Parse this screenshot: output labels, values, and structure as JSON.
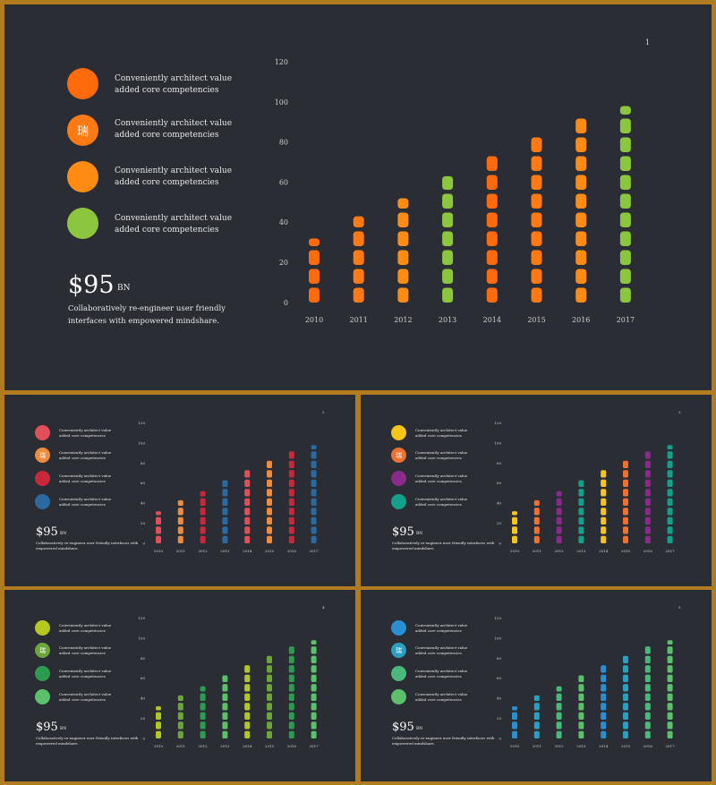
{
  "slides": [
    {
      "page": "1",
      "legend": [
        {
          "text": "Conveniently architect value added core competencies",
          "color": "#ff6a0d",
          "glyph": ""
        },
        {
          "text": "Conveniently architect value added core competencies",
          "color": "#ff7a12",
          "glyph": "瑞"
        },
        {
          "text": "Conveniently architect value added core competencies",
          "color": "#ff8c12",
          "glyph": ""
        },
        {
          "text": "Conveniently architect value added core competencies",
          "color": "#8cc63f",
          "glyph": ""
        }
      ],
      "big_value": "$95",
      "big_unit": "BN",
      "summary": "Collaboratively re-engineer user friendly interfaces with empowered mindshare.",
      "bar_colors": [
        "#ff6a0d",
        "#ff7a12",
        "#ff8c12",
        "#8cc63f",
        "#ff6a0d",
        "#ff7a12",
        "#ff8c12",
        "#8cc63f"
      ]
    },
    {
      "page": "2",
      "legend": [
        {
          "text": "Conveniently architect value added core competencies",
          "color": "#e04e5a",
          "glyph": ""
        },
        {
          "text": "Conveniently architect value added core competencies",
          "color": "#f08a3c",
          "glyph": "瑞"
        },
        {
          "text": "Conveniently architect value added core competencies",
          "color": "#c8283a",
          "glyph": ""
        },
        {
          "text": "Conveniently architect value added core competencies",
          "color": "#2a6aa0",
          "glyph": ""
        }
      ],
      "big_value": "$95",
      "big_unit": "BN",
      "summary": "Collaboratively re-engineer user friendly interfaces with empowered mindshare.",
      "bar_colors": [
        "#e04e5a",
        "#f08a3c",
        "#c8283a",
        "#2a6aa0",
        "#e04e5a",
        "#f08a3c",
        "#c8283a",
        "#2a6aa0"
      ]
    },
    {
      "page": "3",
      "legend": [
        {
          "text": "Conveniently architect value added core competencies",
          "color": "#f5c518",
          "glyph": ""
        },
        {
          "text": "Conveniently architect value added core competencies",
          "color": "#f07030",
          "glyph": "瑞"
        },
        {
          "text": "Conveniently architect value added core competencies",
          "color": "#8a2a8a",
          "glyph": ""
        },
        {
          "text": "Conveniently architect value added core competencies",
          "color": "#12a08a",
          "glyph": ""
        }
      ],
      "big_value": "$95",
      "big_unit": "BN",
      "summary": "Collaboratively re-engineer user friendly interfaces with empowered mindshare.",
      "bar_colors": [
        "#f5c518",
        "#f07030",
        "#8a2a8a",
        "#12a08a",
        "#f5c518",
        "#f07030",
        "#8a2a8a",
        "#12a08a"
      ]
    },
    {
      "page": "4",
      "legend": [
        {
          "text": "Conveniently architect value added core competencies",
          "color": "#b4c81e",
          "glyph": ""
        },
        {
          "text": "Conveniently architect value added core competencies",
          "color": "#6aa63a",
          "glyph": "瑞"
        },
        {
          "text": "Conveniently architect value added core competencies",
          "color": "#2e9a50",
          "glyph": ""
        },
        {
          "text": "Conveniently architect value added core competencies",
          "color": "#5cbf6a",
          "glyph": ""
        }
      ],
      "big_value": "$95",
      "big_unit": "BN",
      "summary": "Collaboratively re-engineer user friendly interfaces with empowered mindshare.",
      "bar_colors": [
        "#b4c81e",
        "#6aa63a",
        "#2e9a50",
        "#5cbf6a",
        "#b4c81e",
        "#6aa63a",
        "#2e9a50",
        "#5cbf6a"
      ]
    },
    {
      "page": "5",
      "legend": [
        {
          "text": "Conveniently architect value added core competencies",
          "color": "#2a8fd0",
          "glyph": ""
        },
        {
          "text": "Conveniently architect value added core competencies",
          "color": "#2aa0c0",
          "glyph": "瑞"
        },
        {
          "text": "Conveniently architect value added core competencies",
          "color": "#4ab878",
          "glyph": ""
        },
        {
          "text": "Conveniently architect value added core competencies",
          "color": "#5cbf6a",
          "glyph": ""
        }
      ],
      "big_value": "$95",
      "big_unit": "BN",
      "summary": "Collaboratively re-engineer user friendly interfaces with empowered mindshare.",
      "bar_colors": [
        "#2a8fd0",
        "#2aa0c0",
        "#4ab878",
        "#5cbf6a",
        "#2a8fd0",
        "#2aa0c0",
        "#4ab878",
        "#5cbf6a"
      ]
    }
  ],
  "chart_data": {
    "type": "bar",
    "categories": [
      "2010",
      "2011",
      "2012",
      "2013",
      "2014",
      "2015",
      "2016",
      "2017"
    ],
    "values": [
      32,
      43,
      52,
      63,
      73,
      84,
      93,
      98
    ],
    "ylim": [
      0,
      120
    ],
    "yticks": [
      "0",
      "20",
      "40",
      "60",
      "80",
      "100",
      "120"
    ],
    "grid": false,
    "legend": "none"
  }
}
